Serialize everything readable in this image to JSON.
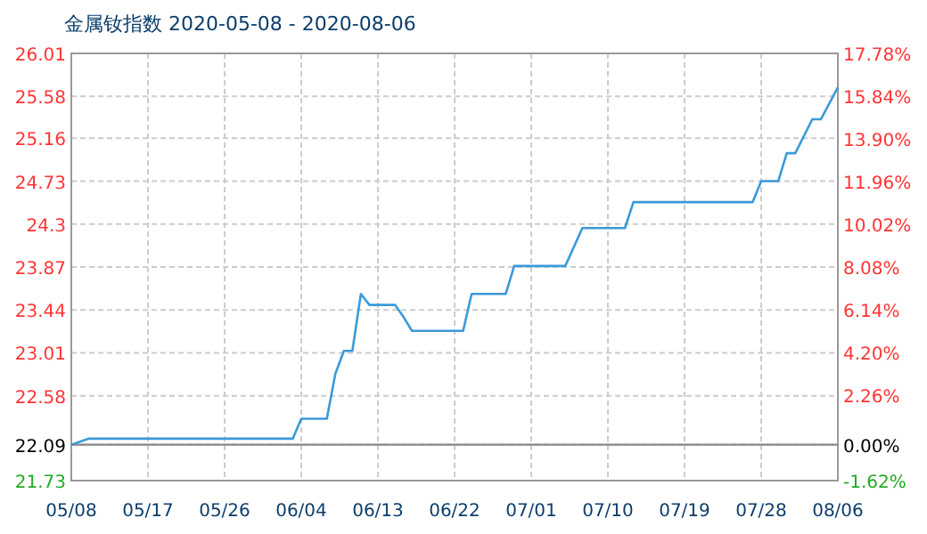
{
  "chart_data": {
    "type": "line",
    "title": "金属钕指数 2020-05-08 - 2020-08-06",
    "x": [
      "2020-05-08",
      "2020-05-10",
      "2020-06-03",
      "2020-06-04",
      "2020-06-07",
      "2020-06-08",
      "2020-06-09",
      "2020-06-10",
      "2020-06-11",
      "2020-06-12",
      "2020-06-15",
      "2020-06-16",
      "2020-06-17",
      "2020-06-23",
      "2020-06-24",
      "2020-06-28",
      "2020-06-29",
      "2020-07-05",
      "2020-07-07",
      "2020-07-12",
      "2020-07-13",
      "2020-07-27",
      "2020-07-28",
      "2020-07-30",
      "2020-07-31",
      "2020-08-01",
      "2020-08-03",
      "2020-08-04",
      "2020-08-06"
    ],
    "series": [
      {
        "color": "#3a9ad9",
        "values": [
          22.09,
          22.15,
          22.15,
          22.35,
          22.35,
          22.8,
          23.03,
          23.03,
          23.6,
          23.49,
          23.49,
          23.37,
          23.23,
          23.23,
          23.6,
          23.6,
          23.88,
          23.88,
          24.26,
          24.26,
          24.52,
          24.52,
          24.73,
          24.73,
          25.01,
          25.01,
          25.35,
          25.35,
          25.67
        ]
      }
    ],
    "xlim": [
      "2020-05-08",
      "2020-08-06"
    ],
    "xticks": [
      {
        "value": "2020-05-08",
        "label": "05/08"
      },
      {
        "value": "2020-05-17",
        "label": "05/17"
      },
      {
        "value": "2020-05-26",
        "label": "05/26"
      },
      {
        "value": "2020-06-04",
        "label": "06/04"
      },
      {
        "value": "2020-06-13",
        "label": "06/13"
      },
      {
        "value": "2020-06-22",
        "label": "06/22"
      },
      {
        "value": "2020-07-01",
        "label": "07/01"
      },
      {
        "value": "2020-07-10",
        "label": "07/10"
      },
      {
        "value": "2020-07-19",
        "label": "07/19"
      },
      {
        "value": "2020-07-28",
        "label": "07/28"
      },
      {
        "value": "2020-08-06",
        "label": "08/06"
      }
    ],
    "ylim": [
      21.73,
      26.01
    ],
    "yticks": [
      21.73,
      22.09,
      22.58,
      23.01,
      {
        "value": 23.44,
        "label": "23.44"
      },
      23.87,
      {
        "value": 24.3,
        "label": "24.3"
      },
      24.73,
      25.16,
      25.58,
      26.01
    ],
    "y2lim": [
      -1.62,
      17.78
    ],
    "y2ticks": [
      {
        "value": -1.62,
        "label": "-1.62%"
      },
      {
        "value": 0,
        "label": "0.00%"
      },
      {
        "value": 2.26,
        "label": "2.26%"
      },
      {
        "value": 4.2,
        "label": "4.20%"
      },
      {
        "value": 6.14,
        "label": "6.14%"
      },
      {
        "value": 8.08,
        "label": "8.08%"
      },
      {
        "value": 10.02,
        "label": "10.02%"
      },
      {
        "value": 11.96,
        "label": "11.96%"
      },
      {
        "value": 13.9,
        "label": "13.90%"
      },
      {
        "value": 15.84,
        "label": "15.84%"
      },
      {
        "value": 17.78,
        "label": "17.78%"
      }
    ],
    "ref_lines": [
      {
        "axis": "y",
        "value": 22.09,
        "color": "#888888"
      }
    ],
    "grid": true
  }
}
